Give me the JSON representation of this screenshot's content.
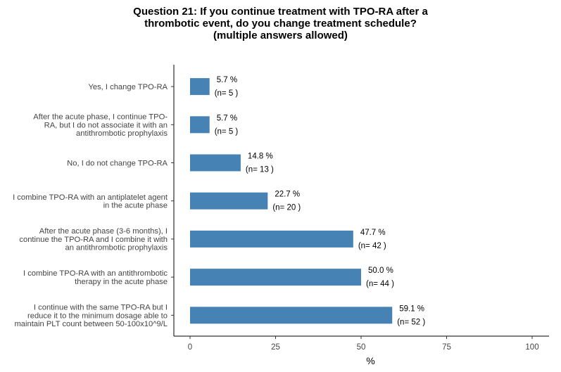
{
  "chart_data": {
    "type": "bar",
    "orientation": "horizontal",
    "title_lines": [
      "Question 21: If you continue treatment with TPO-RA after a",
      "thrombotic event, do you change treatment schedule?",
      "(multiple answers allowed)"
    ],
    "xlabel": "%",
    "xlim": [
      0,
      100
    ],
    "xticks": [
      "0",
      "25",
      "50",
      "75",
      "100"
    ],
    "grid": false,
    "bar_color": "#4682B4",
    "categories": [
      {
        "lines": [
          "Yes, I change TPO-RA"
        ],
        "value": 5.7,
        "pct_label": "5.7 %",
        "n_label": "(n= 5 )"
      },
      {
        "lines": [
          "After the acute phase, I continue TPO-",
          "RA, but I do not associate it with an",
          "antithrombotic prophylaxis"
        ],
        "value": 5.7,
        "pct_label": "5.7 %",
        "n_label": "(n= 5 )"
      },
      {
        "lines": [
          "No, I do not change TPO-RA"
        ],
        "value": 14.8,
        "pct_label": "14.8 %",
        "n_label": "(n= 13 )"
      },
      {
        "lines": [
          "I combine TPO-RA with an antiplatelet agent",
          "in the acute phase"
        ],
        "value": 22.7,
        "pct_label": "22.7 %",
        "n_label": "(n= 20 )"
      },
      {
        "lines": [
          "After the acute phase (3-6 months), I",
          "continue the TPO-RA and I combine it with",
          "an antithrombotic prophylaxis"
        ],
        "value": 47.7,
        "pct_label": "47.7 %",
        "n_label": "(n= 42 )"
      },
      {
        "lines": [
          "I combine TPO-RA with an antithrombotic",
          "therapy in the acute phase"
        ],
        "value": 50.0,
        "pct_label": "50.0 %",
        "n_label": "(n= 44 )"
      },
      {
        "lines": [
          "I continue with the same TPO-RA but I",
          "reduce it to the minimum dosage able to",
          "maintain PLT count between 50-100x10^9/L"
        ],
        "value": 59.1,
        "pct_label": "59.1 %",
        "n_label": "(n= 52 )"
      }
    ]
  }
}
